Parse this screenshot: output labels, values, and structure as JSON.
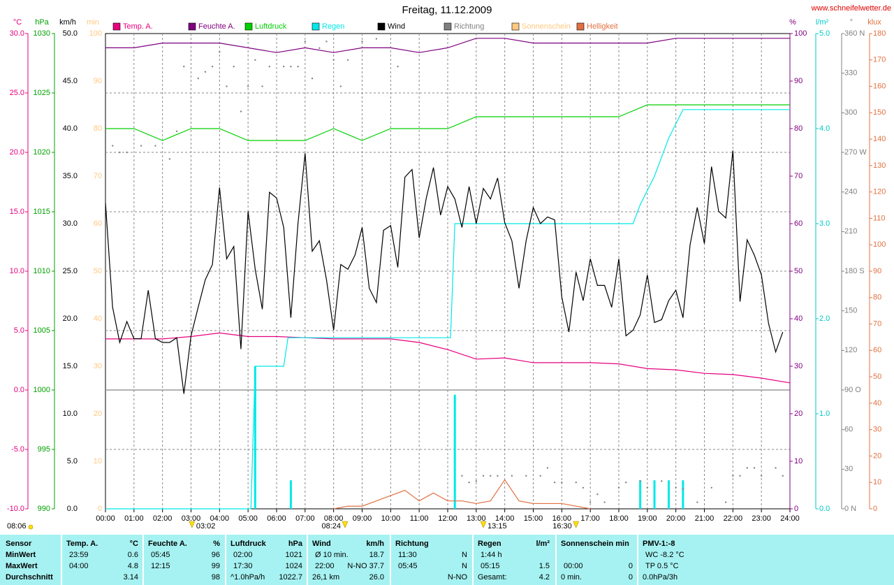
{
  "chart_data": {
    "type": "line",
    "title": "Freitag, 11.12.2009",
    "source": "www.schneifelwetter.de",
    "moon_time": "08:06",
    "xlim": [
      0,
      24
    ],
    "xticks": [
      {
        "value": 0,
        "label": "00:00"
      },
      {
        "value": 1,
        "label": "01:00"
      },
      {
        "value": 2,
        "label": "02:00"
      },
      {
        "value": 3,
        "label": "03:00"
      },
      {
        "value": 4,
        "label": "04:00"
      },
      {
        "value": 5,
        "label": "05:00"
      },
      {
        "value": 6,
        "label": "06:00"
      },
      {
        "value": 7,
        "label": "07:00"
      },
      {
        "value": 8,
        "label": "08:00"
      },
      {
        "value": 9,
        "label": "09:00"
      },
      {
        "value": 10,
        "label": "10:00"
      },
      {
        "value": 11,
        "label": "11:00"
      },
      {
        "value": 12,
        "label": "12:00"
      },
      {
        "value": 13,
        "label": "13:00"
      },
      {
        "value": 14,
        "label": "14:00"
      },
      {
        "value": 15,
        "label": "15:00"
      },
      {
        "value": 16,
        "label": "16:00"
      },
      {
        "value": 17,
        "label": "17:00"
      },
      {
        "value": 18,
        "label": "18:00"
      },
      {
        "value": 19,
        "label": "19:00"
      },
      {
        "value": 20,
        "label": "20:00"
      },
      {
        "value": 21,
        "label": "21:00"
      },
      {
        "value": 22,
        "label": "22:00"
      },
      {
        "value": 23,
        "label": "23:00"
      },
      {
        "value": 24,
        "label": "24:00"
      }
    ],
    "grid": true,
    "axes": {
      "temp": {
        "unit": "°C",
        "color": "#e6007e",
        "lim": [
          -10,
          30
        ],
        "ticks": [
          {
            "value": -10,
            "label": "-10.0"
          },
          {
            "value": -5,
            "label": "-5.0"
          },
          {
            "value": 0,
            "label": "0.0"
          },
          {
            "value": 5,
            "label": "5.0"
          },
          {
            "value": 10,
            "label": "10.0"
          },
          {
            "value": 15,
            "label": "15.0"
          },
          {
            "value": 20,
            "label": "20.0"
          },
          {
            "value": 25,
            "label": "25.0"
          },
          {
            "value": 30,
            "label": "30.0"
          }
        ]
      },
      "press": {
        "unit": "hPa",
        "color": "#00a000",
        "lim": [
          990,
          1030
        ],
        "ticks": [
          990,
          995,
          1000,
          1005,
          1010,
          1015,
          1020,
          1025,
          1030
        ]
      },
      "wind": {
        "unit": "km/h",
        "color": "#000000",
        "lim": [
          0,
          50
        ],
        "ticks": [
          {
            "value": 0,
            "label": "0.0"
          },
          {
            "value": 5,
            "label": "5.0"
          },
          {
            "value": 10,
            "label": "10.0"
          },
          {
            "value": 15,
            "label": "15.0"
          },
          {
            "value": 20,
            "label": "20.0"
          },
          {
            "value": 25,
            "label": "25.0"
          },
          {
            "value": 30,
            "label": "30.0"
          },
          {
            "value": 35,
            "label": "35.0"
          },
          {
            "value": 40,
            "label": "40.0"
          },
          {
            "value": 45,
            "label": "45.0"
          },
          {
            "value": 50,
            "label": "50.0"
          }
        ]
      },
      "sun": {
        "unit": "min",
        "color": "#ffc880",
        "lim": [
          0,
          100
        ],
        "ticks": [
          0,
          10,
          20,
          30,
          40,
          50,
          60,
          70,
          80,
          90,
          100
        ]
      },
      "hum": {
        "unit": "%",
        "color": "#800080",
        "lim": [
          0,
          100
        ],
        "ticks": [
          0,
          10,
          20,
          30,
          40,
          50,
          60,
          70,
          80,
          90,
          100
        ]
      },
      "rain": {
        "unit": "l/m²",
        "color": "#00c8c8",
        "lim": [
          0,
          5
        ],
        "ticks": [
          {
            "value": 0,
            "label": "0.0"
          },
          {
            "value": 1,
            "label": "1.0"
          },
          {
            "value": 2,
            "label": "2.0"
          },
          {
            "value": 3,
            "label": "3.0"
          },
          {
            "value": 4,
            "label": "4.0"
          },
          {
            "value": 5,
            "label": "5.0"
          }
        ]
      },
      "dir": {
        "unit": "°",
        "color": "#808080",
        "lim": [
          0,
          360
        ],
        "ticks": [
          {
            "value": 0,
            "label": "0 N"
          },
          30,
          60,
          {
            "value": 90,
            "label": "90 O"
          },
          120,
          150,
          {
            "value": 180,
            "label": "180 S"
          },
          210,
          240,
          {
            "value": 270,
            "label": "270 W"
          },
          300,
          330,
          {
            "value": 360,
            "label": "360 N"
          }
        ]
      },
      "lux": {
        "unit": "klux",
        "color": "#e07040",
        "lim": [
          0,
          180
        ],
        "ticks": [
          0,
          10,
          20,
          30,
          40,
          50,
          60,
          70,
          80,
          90,
          100,
          110,
          120,
          130,
          140,
          150,
          160,
          170,
          180
        ]
      }
    },
    "series": [
      {
        "name": "Temp. A.",
        "color": "#e6007e",
        "axis": "temp",
        "style": "line",
        "x": [
          0,
          1,
          2,
          3,
          4,
          5,
          6,
          7,
          8,
          9,
          10,
          11,
          12,
          13,
          14,
          15,
          16,
          17,
          18,
          19,
          20,
          21,
          22,
          23,
          24
        ],
        "values": [
          4.3,
          4.3,
          4.3,
          4.5,
          4.8,
          4.5,
          4.5,
          4.4,
          4.3,
          4.3,
          4.3,
          4.0,
          3.4,
          2.6,
          2.7,
          2.3,
          2.3,
          2.3,
          2.2,
          1.8,
          1.7,
          1.4,
          1.3,
          1.0,
          0.6
        ]
      },
      {
        "name": "Feuchte A.",
        "color": "#800080",
        "axis": "hum",
        "style": "line",
        "x": [
          0,
          1,
          2,
          3,
          4,
          5,
          6,
          7,
          8,
          9,
          10,
          11,
          12,
          13,
          14,
          15,
          16,
          17,
          18,
          19,
          20,
          21,
          22,
          23,
          24
        ],
        "values": [
          97,
          97,
          98,
          98,
          98,
          97,
          96,
          97,
          96,
          97,
          97,
          96,
          97,
          99,
          99,
          98,
          98,
          98,
          98,
          98,
          99,
          99,
          99,
          99,
          99
        ]
      },
      {
        "name": "Luftdruck",
        "color": "#00d000",
        "axis": "press",
        "style": "line",
        "x": [
          0,
          1,
          2,
          3,
          4,
          5,
          6,
          7,
          8,
          9,
          10,
          11,
          12,
          13,
          14,
          15,
          16,
          17,
          18,
          19,
          20,
          21,
          22,
          23,
          24
        ],
        "values": [
          1022,
          1022,
          1021,
          1022,
          1022,
          1021,
          1021,
          1021,
          1022,
          1021,
          1022,
          1022,
          1022,
          1023,
          1023,
          1023,
          1023,
          1023,
          1023,
          1024,
          1024,
          1024,
          1024,
          1024,
          1024
        ]
      },
      {
        "name": "Regen",
        "color": "#00e8e8",
        "axis": "rain",
        "style": "line",
        "x": [
          0,
          5.1,
          5.25,
          6.25,
          6.4,
          12.1,
          12.25,
          18.5,
          18.75,
          19.25,
          19.75,
          20.25,
          24
        ],
        "values": [
          0,
          0,
          1.5,
          1.5,
          1.8,
          1.8,
          3.0,
          3.0,
          3.2,
          3.5,
          3.9,
          4.2,
          4.2
        ],
        "bars": {
          "x": [
            5.25,
            6.5,
            12.25,
            18.75,
            19.25,
            19.75,
            20.25
          ],
          "values": [
            1.5,
            0.3,
            1.2,
            0.3,
            0.3,
            0.3,
            0.3
          ]
        }
      },
      {
        "name": "Wind",
        "color": "#000000",
        "axis": "wind",
        "style": "line",
        "x": [
          0,
          0.25,
          0.5,
          0.75,
          1,
          1.25,
          1.5,
          1.75,
          2,
          2.25,
          2.5,
          2.75,
          3,
          3.25,
          3.5,
          3.75,
          4,
          4.25,
          4.5,
          4.75,
          5,
          5.25,
          5.5,
          5.75,
          6,
          6.25,
          6.5,
          6.75,
          7,
          7.25,
          7.5,
          7.75,
          8,
          8.25,
          8.5,
          8.75,
          9,
          9.25,
          9.5,
          9.75,
          10,
          10.25,
          10.5,
          10.75,
          11,
          11.25,
          11.5,
          11.75,
          12,
          12.25,
          12.5,
          12.75,
          13,
          13.25,
          13.5,
          13.75,
          14,
          14.25,
          14.5,
          14.75,
          15,
          15.25,
          15.5,
          15.75,
          16,
          16.25,
          16.5,
          16.75,
          17,
          17.25,
          17.5,
          17.75,
          18,
          18.25,
          18.5,
          18.75,
          19,
          19.25,
          19.5,
          19.75,
          20,
          20.25,
          20.5,
          20.75,
          21,
          21.25,
          21.5,
          21.75,
          22,
          22.25,
          22.5,
          22.75,
          23,
          23.25,
          23.5,
          23.75
        ],
        "values": [
          32.2,
          21.2,
          17.5,
          19.7,
          17.9,
          17.9,
          23.0,
          17.9,
          17.5,
          17.5,
          18.0,
          12.1,
          18.2,
          21.2,
          24.1,
          25.7,
          33.8,
          26.3,
          27.6,
          16.8,
          31.3,
          25.2,
          21.0,
          33.3,
          32.7,
          29.6,
          20.1,
          30.0,
          37.4,
          27.1,
          28.2,
          24.1,
          18.8,
          25.7,
          25.2,
          26.7,
          29.6,
          23.2,
          21.7,
          29.3,
          29.8,
          25.4,
          34.9,
          35.7,
          28.5,
          32.7,
          35.9,
          30.9,
          33.9,
          32.6,
          29.6,
          33.9,
          30.0,
          33.7,
          32.6,
          34.8,
          30.1,
          28.2,
          23.2,
          28.2,
          31.7,
          30.0,
          30.7,
          30.4,
          22.3,
          18.6,
          24.9,
          21.9,
          26.3,
          23.5,
          23.5,
          21.2,
          26.3,
          18.2,
          18.8,
          20.4,
          24.6,
          19.6,
          19.9,
          21.9,
          23.0,
          20.1,
          27.8,
          31.7,
          27.9,
          36.0,
          31.3,
          30.6,
          37.7,
          21.8,
          28.3,
          26.7,
          24.6,
          19.5,
          16.5,
          18.6
        ]
      },
      {
        "name": "Richtung",
        "color": "#808080",
        "axis": "dir",
        "style": "dots",
        "x": [
          0.25,
          0.5,
          0.75,
          1.25,
          1.75,
          2.25,
          2.5,
          2.75,
          3.25,
          3.5,
          3.75,
          4.0,
          4.25,
          4.5,
          4.75,
          5.0,
          5.25,
          5.5,
          5.75,
          6.25,
          6.5,
          6.75,
          7.0,
          7.25,
          7.5,
          7.75,
          8.0,
          8.25,
          8.5,
          9.0,
          9.5,
          10.25,
          12.5,
          12.75,
          13.0,
          13.25,
          13.5,
          13.75,
          14.25,
          14.75,
          15.25,
          15.5,
          15.75,
          16.0,
          16.5,
          16.75,
          17.0,
          17.25,
          17.5,
          18.0,
          18.25,
          18.75,
          19.0,
          19.5,
          20.0,
          20.25,
          20.75,
          21.25,
          21.75,
          22.0,
          22.25,
          22.5,
          22.75,
          23.0,
          23.5,
          23.75
        ],
        "values": [
          275,
          270,
          270,
          275,
          275,
          265,
          286,
          335,
          326,
          331,
          335,
          346,
          320,
          335,
          301,
          320,
          340,
          320,
          335,
          335,
          335,
          335,
          354,
          326,
          349,
          354,
          340,
          320,
          340,
          354,
          356,
          335,
          25,
          20,
          21,
          25,
          25,
          25,
          25,
          25,
          25,
          31,
          20,
          20,
          20,
          16,
          5,
          11,
          5,
          16,
          20,
          21,
          16,
          21,
          16,
          15,
          5,
          16,
          5,
          25,
          25,
          31,
          31,
          25,
          31,
          25
        ]
      },
      {
        "name": "Sonnenschein",
        "color": "#ffc880",
        "axis": "sun",
        "style": "line"
      },
      {
        "name": "Helligkeit",
        "color": "#e07040",
        "axis": "lux",
        "style": "line",
        "x": [
          8,
          8.5,
          9,
          9.5,
          10,
          10.5,
          11,
          11.5,
          12,
          12.5,
          13,
          13.5,
          14,
          14.5,
          15,
          15.5,
          16,
          16.5,
          17
        ],
        "values": [
          0,
          1,
          1,
          3,
          5,
          7,
          3,
          6,
          3,
          3,
          2,
          3,
          11,
          3,
          2,
          2,
          2,
          1,
          0
        ]
      }
    ],
    "markers": [
      {
        "x": 3.0333,
        "label": "03:02"
      },
      {
        "x": 8.4,
        "label": "08:24"
      },
      {
        "x": 13.25,
        "label": "13:15"
      },
      {
        "x": 16.5,
        "label": "16:30"
      }
    ]
  },
  "summary": {
    "row_labels": [
      "Sensor",
      "MinWert",
      "MaxWert",
      "Durchschnitt"
    ],
    "groups": [
      {
        "name": "Temp. A.",
        "unit": "°C",
        "min_time": "23:59",
        "min": 0.6,
        "max_time": "04:00",
        "max": 4.8,
        "avg": 3.14
      },
      {
        "name": "Feuchte A.",
        "unit": "%",
        "min_time": "05:45",
        "min": 96,
        "max_time": "12:15",
        "max": 99,
        "avg": 98
      },
      {
        "name": "Luftdruck",
        "unit": "hPa",
        "min_time": "02:00",
        "min": 1021,
        "max_time": "17:30",
        "max": 1024,
        "avg_note": "^1.0hPa/h",
        "avg": 1022.7
      },
      {
        "name": "Wind",
        "unit": "km/h",
        "min_time": "Ø 10 min.",
        "min": 18.7,
        "max_time": "22:00",
        "max": "N-NO 37.7",
        "avg_note": "26,1 km",
        "avg": "26.0"
      },
      {
        "name": "Richtung",
        "min_time": "11:30",
        "min": "N",
        "max_time": "05:45",
        "max": "N",
        "avg": "N-NO"
      },
      {
        "name": "Regen",
        "unit": "l/m²",
        "min_time": "1:44 h",
        "max_time": "05:15",
        "max": 1.5,
        "avg_note": "Gesamt:",
        "avg": 4.2
      },
      {
        "name": "Sonnenschein min",
        "max_time": "00:00",
        "max": 0,
        "avg_note": "0 min.",
        "avg": 0
      },
      {
        "name": "PMV-1:-8",
        "min_time": "WC -8.2 °C",
        "max_time": "TP 0.5 °C",
        "avg_note": "0.0hPa/3h"
      }
    ]
  }
}
